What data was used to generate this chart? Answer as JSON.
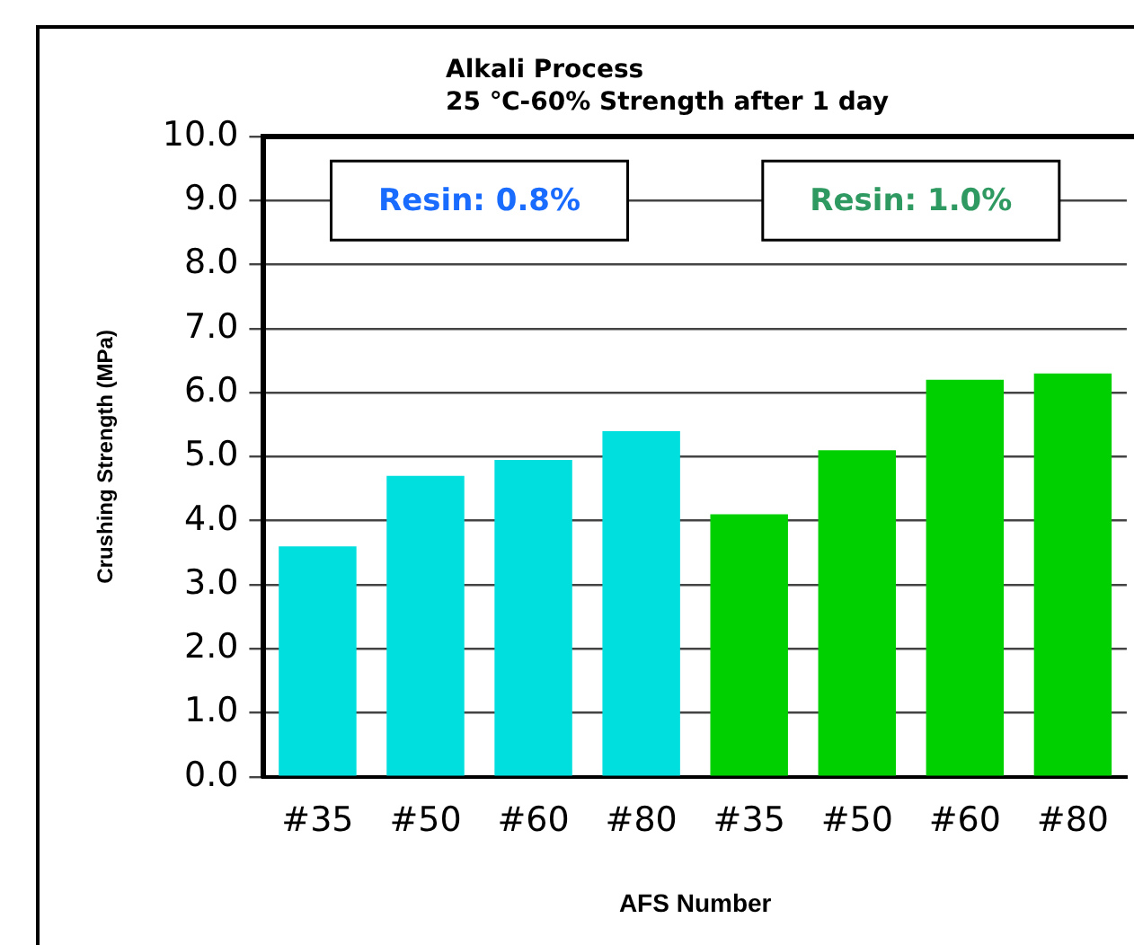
{
  "chart_data": {
    "type": "bar",
    "title": "Alkali Process",
    "subtitle": "25 ℃-60% Strength after 1 day",
    "xlabel": "AFS Number",
    "ylabel": "Crushing Strength (MPa)",
    "categories": [
      "#35",
      "#50",
      "#60",
      "#80",
      "#35",
      "#50",
      "#60",
      "#80"
    ],
    "values": [
      3.6,
      4.7,
      4.95,
      5.4,
      4.1,
      5.1,
      6.2,
      6.3
    ],
    "colors": [
      "#00dede",
      "#00dede",
      "#00dede",
      "#00dede",
      "#00d000",
      "#00d000",
      "#00d000",
      "#00d000"
    ],
    "ylim": [
      0,
      10
    ],
    "yticks": [
      {
        "value": 0,
        "label": "0.0"
      },
      {
        "value": 1,
        "label": "1.0"
      },
      {
        "value": 2,
        "label": "2.0"
      },
      {
        "value": 3,
        "label": "3.0"
      },
      {
        "value": 4,
        "label": "4.0"
      },
      {
        "value": 5,
        "label": "5.0"
      },
      {
        "value": 6,
        "label": "6.0"
      },
      {
        "value": 7,
        "label": "7.0"
      },
      {
        "value": 8,
        "label": "8.0"
      },
      {
        "value": 9,
        "label": "9.0"
      },
      {
        "value": 10,
        "label": "10.0"
      }
    ],
    "grid": "y",
    "legend": false,
    "annotations": [
      "Resin: 0.8%",
      "Resin: 1.0%"
    ]
  }
}
